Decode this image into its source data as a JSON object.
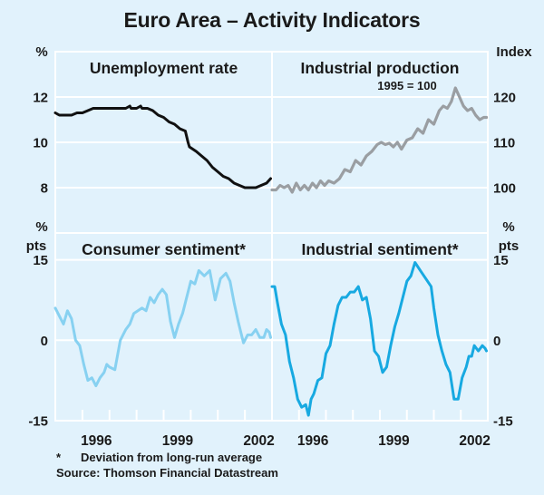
{
  "title": "Euro Area – Activity Indicators",
  "footnote_marker": "*",
  "footnote": "Deviation from long-run average",
  "source": "Source: Thomson Financial Datastream",
  "colors": {
    "background": "#e1f2fc",
    "grid": "#ffffff",
    "unemployment": "#111111",
    "industrial_production": "#9a9ea2",
    "consumer_sentiment": "#87d1f1",
    "industrial_sentiment": "#17a9e1"
  },
  "chart_data": [
    {
      "type": "line",
      "title": "Unemployment rate",
      "panel": "top-left",
      "ylabel": "%",
      "ylim": [
        6,
        14
      ],
      "yticks": [
        8,
        10,
        12
      ],
      "xlim": [
        1994,
        2002
      ],
      "xticks": [],
      "series": [
        {
          "name": "Unemployment rate",
          "x": [
            1994.0,
            1994.15,
            1994.4,
            1994.6,
            1994.8,
            1995.0,
            1995.2,
            1995.4,
            1995.6,
            1995.8,
            1996.0,
            1996.3,
            1996.6,
            1996.75,
            1996.8,
            1997.0,
            1997.15,
            1997.2,
            1997.4,
            1997.6,
            1997.8,
            1998.0,
            1998.2,
            1998.4,
            1998.6,
            1998.8,
            1998.9,
            1998.95,
            1999.2,
            1999.4,
            1999.6,
            1999.8,
            2000.0,
            2000.2,
            2000.4,
            2000.6,
            2000.8,
            2001.0,
            2001.2,
            2001.4,
            2001.6,
            2001.8,
            2001.95
          ],
          "values": [
            11.3,
            11.2,
            11.2,
            11.2,
            11.3,
            11.3,
            11.4,
            11.5,
            11.5,
            11.5,
            11.5,
            11.5,
            11.5,
            11.6,
            11.5,
            11.5,
            11.6,
            11.5,
            11.5,
            11.4,
            11.2,
            11.1,
            10.9,
            10.8,
            10.6,
            10.5,
            10.0,
            9.8,
            9.6,
            9.4,
            9.2,
            8.9,
            8.7,
            8.5,
            8.4,
            8.2,
            8.1,
            8.0,
            8.0,
            8.0,
            8.1,
            8.2,
            8.4
          ]
        }
      ]
    },
    {
      "type": "line",
      "title": "Industrial production",
      "subtitle": "1995 = 100",
      "panel": "top-right",
      "ylabel": "Index",
      "ylim": [
        90,
        130
      ],
      "yticks": [
        100,
        110,
        120
      ],
      "xlim": [
        1994,
        2002
      ],
      "xticks": [],
      "series": [
        {
          "name": "Industrial production",
          "x": [
            1994.0,
            1994.15,
            1994.3,
            1994.45,
            1994.6,
            1994.75,
            1994.9,
            1995.05,
            1995.2,
            1995.35,
            1995.5,
            1995.65,
            1995.8,
            1995.95,
            1996.1,
            1996.3,
            1996.5,
            1996.7,
            1996.9,
            1997.1,
            1997.3,
            1997.5,
            1997.7,
            1997.9,
            1998.05,
            1998.2,
            1998.35,
            1998.5,
            1998.65,
            1998.8,
            1999.0,
            1999.2,
            1999.4,
            1999.6,
            1999.8,
            2000.0,
            2000.2,
            2000.35,
            2000.5,
            2000.65,
            2000.8,
            2000.95,
            2001.1,
            2001.25,
            2001.4,
            2001.55,
            2001.7,
            2001.85,
            2001.95
          ],
          "values": [
            99.5,
            99.5,
            100.5,
            100,
            100.5,
            99,
            101,
            99.5,
            100.5,
            99.5,
            101,
            100,
            101.5,
            100.5,
            101.5,
            101,
            102,
            104,
            103.5,
            106,
            105,
            107,
            108,
            109.5,
            110,
            109.5,
            109.8,
            109,
            110,
            108.5,
            110.5,
            111,
            113,
            112,
            115,
            114,
            117,
            118,
            117.5,
            119,
            122,
            120,
            118,
            117,
            117.5,
            116,
            115,
            115.5,
            115.5
          ]
        }
      ]
    },
    {
      "type": "line",
      "title": "Consumer sentiment*",
      "panel": "bottom-left",
      "ylabel": "% pts",
      "ylim": [
        -15,
        20
      ],
      "yticks": [
        -15,
        0,
        15
      ],
      "xlim": [
        1994,
        2002
      ],
      "xticks": [
        "1996",
        "1999",
        "2002"
      ],
      "series": [
        {
          "name": "Consumer sentiment",
          "x": [
            1994.0,
            1994.15,
            1994.3,
            1994.45,
            1994.6,
            1994.75,
            1994.9,
            1995.05,
            1995.2,
            1995.35,
            1995.5,
            1995.65,
            1995.8,
            1995.9,
            1996.0,
            1996.2,
            1996.4,
            1996.6,
            1996.75,
            1996.9,
            1997.05,
            1997.2,
            1997.35,
            1997.5,
            1997.65,
            1997.8,
            1997.95,
            1998.1,
            1998.25,
            1998.4,
            1998.55,
            1998.7,
            1998.85,
            1999.0,
            1999.15,
            1999.3,
            1999.5,
            1999.7,
            1999.9,
            2000.1,
            2000.3,
            2000.45,
            2000.6,
            2000.75,
            2000.85,
            2000.95,
            2001.1,
            2001.25,
            2001.4,
            2001.55,
            2001.7,
            2001.8,
            2001.9,
            2001.95
          ],
          "values": [
            6,
            4.5,
            3,
            5.5,
            4,
            0,
            -1,
            -4.5,
            -7.5,
            -7,
            -8.5,
            -7,
            -6,
            -4.5,
            -5,
            -5.5,
            0,
            2,
            3,
            5,
            5.5,
            6,
            5.5,
            8,
            7,
            8.5,
            9.5,
            8.5,
            3.5,
            0.5,
            3,
            5,
            8,
            11,
            10.5,
            13,
            12,
            13,
            7.5,
            11.5,
            12.5,
            11,
            7,
            3.5,
            1.5,
            -0.5,
            1,
            1,
            2,
            0.5,
            0.5,
            2,
            1.5,
            0.5
          ]
        }
      ]
    },
    {
      "type": "line",
      "title": "Industrial sentiment*",
      "panel": "bottom-right",
      "ylabel": "% pts",
      "ylim": [
        -15,
        20
      ],
      "yticks": [
        -15,
        0,
        15
      ],
      "xlim": [
        1994,
        2002
      ],
      "xticks": [
        "1996",
        "1999",
        "2002"
      ],
      "series": [
        {
          "name": "Industrial sentiment",
          "x": [
            1994.0,
            1994.1,
            1994.2,
            1994.35,
            1994.5,
            1994.65,
            1994.8,
            1994.95,
            1995.1,
            1995.25,
            1995.35,
            1995.45,
            1995.55,
            1995.7,
            1995.85,
            1996.0,
            1996.15,
            1996.3,
            1996.45,
            1996.6,
            1996.75,
            1996.9,
            1997.05,
            1997.2,
            1997.35,
            1997.5,
            1997.65,
            1997.8,
            1997.95,
            1998.1,
            1998.25,
            1998.4,
            1998.55,
            1998.7,
            1998.85,
            1999.0,
            1999.15,
            1999.3,
            1999.5,
            1999.7,
            1999.9,
            2000.0,
            2000.15,
            2000.3,
            2000.45,
            2000.6,
            2000.75,
            2000.9,
            2001.05,
            2001.2,
            2001.3,
            2001.4,
            2001.5,
            2001.65,
            2001.8,
            2001.9,
            2001.95
          ],
          "values": [
            10,
            10,
            7,
            3,
            1,
            -4,
            -7,
            -11,
            -12.5,
            -12,
            -14,
            -11,
            -10,
            -7.5,
            -7,
            -2.5,
            -1,
            3,
            6.5,
            8,
            8,
            9,
            9,
            10,
            7.5,
            8,
            4,
            -2,
            -3,
            -6,
            -5,
            -1,
            2.5,
            5,
            8,
            11,
            12,
            14.5,
            13,
            11.5,
            10,
            6,
            1,
            -2,
            -4.5,
            -6,
            -11,
            -11,
            -7,
            -5,
            -3,
            -3,
            -1,
            -2,
            -1,
            -1.5,
            -2
          ]
        }
      ]
    }
  ]
}
